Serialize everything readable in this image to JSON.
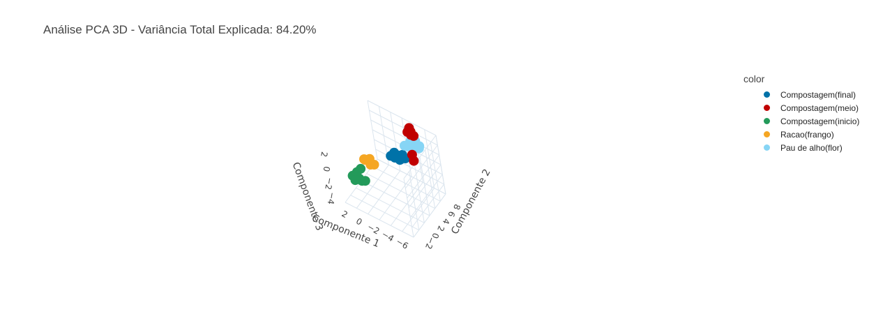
{
  "title": "Análise PCA 3D - Variância Total Explicada: 84.20%",
  "legend": {
    "title": "color",
    "items": [
      {
        "label": "Compostagem(final)",
        "color": "#0072a8"
      },
      {
        "label": "Compostagem(meio)",
        "color": "#c00000"
      },
      {
        "label": "Compostagem(inicio)",
        "color": "#239a5a"
      },
      {
        "label": "Racao(frango)",
        "color": "#f5a623"
      },
      {
        "label": "Pau de alho(flor)",
        "color": "#87d5f5"
      }
    ]
  },
  "chart_data": {
    "type": "scatter3d",
    "title": "Análise PCA 3D - Variância Total Explicada: 84.20%",
    "xlabel": "Componente 1",
    "ylabel": "Componente 2",
    "zlabel": "Componente 3",
    "x_ticks": [
      "2",
      "0",
      "−2",
      "−4",
      "−6"
    ],
    "y_ticks": [
      "−2",
      "0",
      "2",
      "4",
      "6",
      "8"
    ],
    "z_ticks": [
      "2",
      "0",
      "−2",
      "−4"
    ],
    "xlim": [
      2.5,
      -7
    ],
    "ylim": [
      -3,
      9
    ],
    "zlim": [
      -5,
      3
    ],
    "grid": true,
    "legend_position": "top-right",
    "series": [
      {
        "name": "Compostagem(final)",
        "color": "#0072a8",
        "points": [
          [
            -3.0,
            3.5,
            1.0
          ],
          [
            -3.5,
            3.5,
            1.2
          ],
          [
            -2.5,
            3.2,
            0.8
          ],
          [
            -4.0,
            3.8,
            1.4
          ],
          [
            -3.2,
            3.0,
            1.0
          ],
          [
            -4.5,
            3.5,
            1.3
          ],
          [
            -2.8,
            3.8,
            1.1
          ],
          [
            -3.8,
            3.2,
            0.9
          ]
        ]
      },
      {
        "name": "Compostagem(meio)",
        "color": "#c00000",
        "points": [
          [
            -3.5,
            8.5,
            2.0
          ],
          [
            -4.0,
            8.2,
            1.8
          ],
          [
            -3.2,
            8.8,
            2.2
          ],
          [
            -3.5,
            7.8,
            -0.8
          ],
          [
            -3.6,
            7.8,
            -1.6
          ],
          [
            -3.7,
            8.0,
            1.9
          ],
          [
            -3.0,
            8.5,
            1.7
          ]
        ]
      },
      {
        "name": "Compostagem(inicio)",
        "color": "#239a5a",
        "points": [
          [
            0.5,
            -1.5,
            -1.5
          ],
          [
            1.0,
            -1.2,
            -1.8
          ],
          [
            0.0,
            -1.8,
            -1.4
          ],
          [
            1.2,
            -2.0,
            -1.2
          ],
          [
            0.3,
            -1.0,
            -0.3
          ],
          [
            0.7,
            -1.5,
            -0.7
          ],
          [
            -0.2,
            -1.2,
            -1.6
          ],
          [
            0.8,
            -2.2,
            -1.5
          ]
        ]
      },
      {
        "name": "Racao(frango)",
        "color": "#f5a623",
        "points": [
          [
            -2.0,
            -2.5,
            2.5
          ],
          [
            -1.5,
            -2.8,
            2.7
          ],
          [
            -2.5,
            -2.3,
            2.3
          ],
          [
            -1.8,
            -2.0,
            2.6
          ],
          [
            -2.2,
            -2.8,
            2.4
          ],
          [
            -1.2,
            -2.5,
            2.5
          ]
        ]
      },
      {
        "name": "Pau de alho(flor)",
        "color": "#87d5f5",
        "points": [
          [
            -5.0,
            5.0,
            2.5
          ],
          [
            -5.5,
            5.5,
            2.7
          ],
          [
            -4.5,
            4.8,
            2.3
          ],
          [
            -6.0,
            5.2,
            2.6
          ],
          [
            -5.2,
            6.0,
            2.8
          ],
          [
            -4.2,
            4.5,
            2.4
          ],
          [
            -5.8,
            5.8,
            2.5
          ],
          [
            -4.8,
            5.3,
            2.9
          ]
        ]
      }
    ]
  }
}
